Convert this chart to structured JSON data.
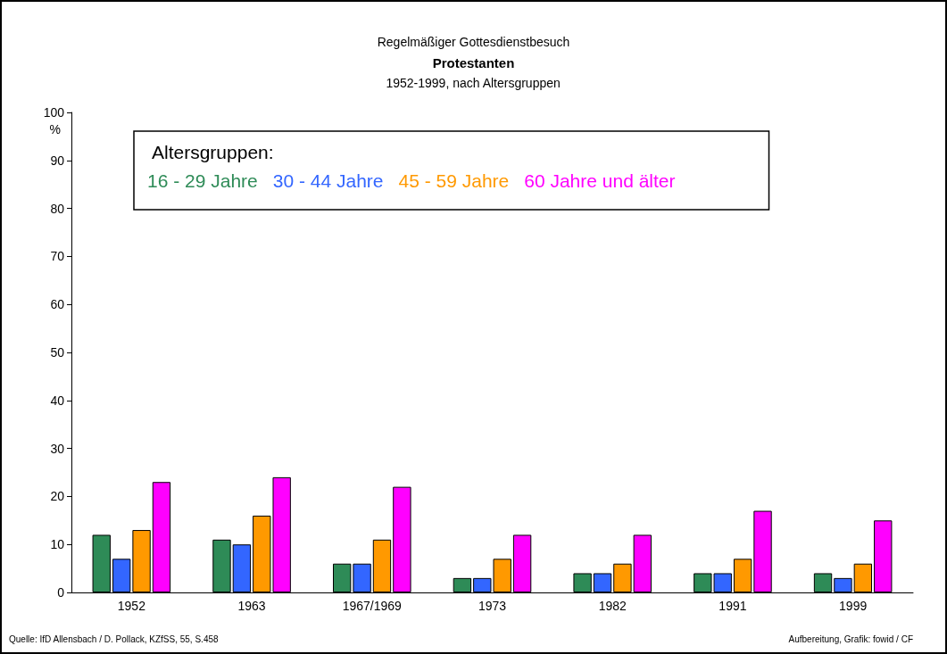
{
  "chart_data": {
    "type": "bar",
    "title": "Protestanten",
    "subtitle": [
      "Regelmäßiger Gottesdienstbesuch",
      "1952-1999, nach Altersgruppen"
    ],
    "ylabel": "%",
    "legend_title": "Altersgruppen:",
    "categories": [
      "1952",
      "1963",
      "1967/1969",
      "1973",
      "1982",
      "1991",
      "1999"
    ],
    "series": [
      {
        "name": "16 - 29 Jahre",
        "color": "#2e8b57",
        "values": [
          12,
          11,
          6,
          3,
          4,
          4,
          4
        ]
      },
      {
        "name": "30 - 44 Jahre",
        "color": "#3366ff",
        "values": [
          7,
          10,
          6,
          3,
          4,
          4,
          3
        ]
      },
      {
        "name": "45 - 59 Jahre",
        "color": "#ff9900",
        "values": [
          13,
          16,
          11,
          7,
          6,
          7,
          6
        ]
      },
      {
        "name": "60 Jahre und älter",
        "color": "#ff00ff",
        "values": [
          23,
          24,
          22,
          12,
          12,
          17,
          15
        ]
      }
    ],
    "ylim": [
      0,
      100
    ],
    "yticks": [
      0,
      10,
      20,
      30,
      40,
      50,
      60,
      70,
      80,
      90,
      100
    ],
    "grid": false,
    "legend": "top left",
    "annotations": [
      "Quelle: IfD Allensbach / D. Pollack, KZfSS, 55, S.458",
      "Aufbereitung, Grafik: fowid / CF"
    ]
  }
}
